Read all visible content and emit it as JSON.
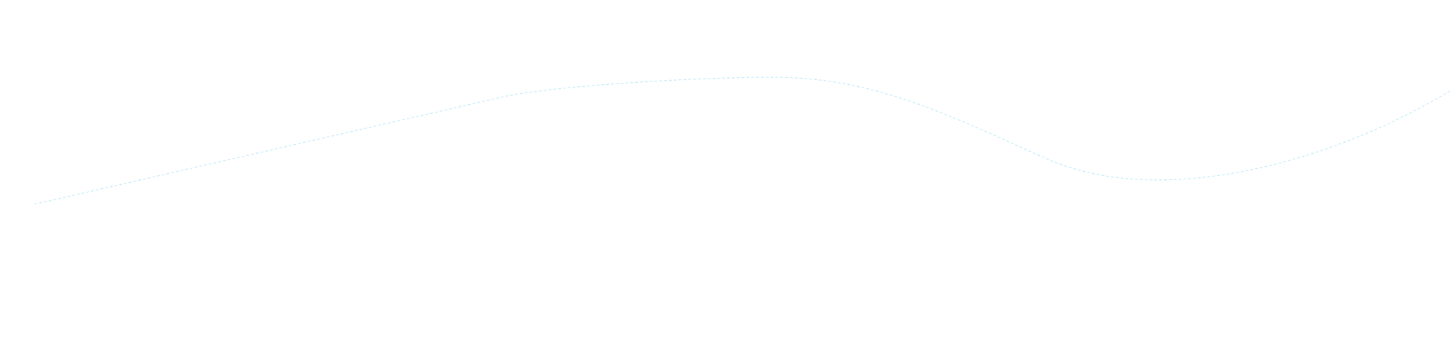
{
  "canvas": {
    "background": "#ffffff"
  },
  "curve": {
    "stroke_color": "#c8ecfb",
    "style": "dashed"
  }
}
